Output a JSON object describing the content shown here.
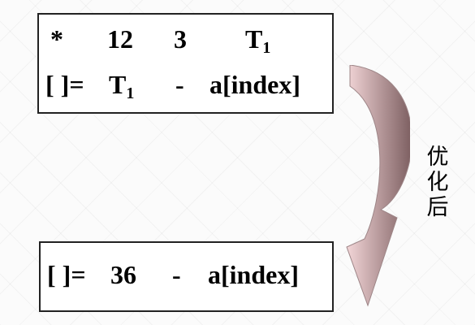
{
  "before": {
    "row1": {
      "op": "*",
      "arg1": "12",
      "arg2": "3",
      "result": "T",
      "result_sub": "1"
    },
    "row2": {
      "op": "[ ]=",
      "arg1": "T",
      "arg1_sub": "1",
      "arg2": "-",
      "result": "a[index]"
    }
  },
  "after": {
    "row": {
      "op": "[ ]=",
      "arg1": "36",
      "arg2": "-",
      "result": "a[index]"
    }
  },
  "arrow": {
    "label_chars": [
      "优",
      "化",
      "后"
    ],
    "color_light": "#f3d6d8",
    "color_dark": "#7c5e60"
  }
}
